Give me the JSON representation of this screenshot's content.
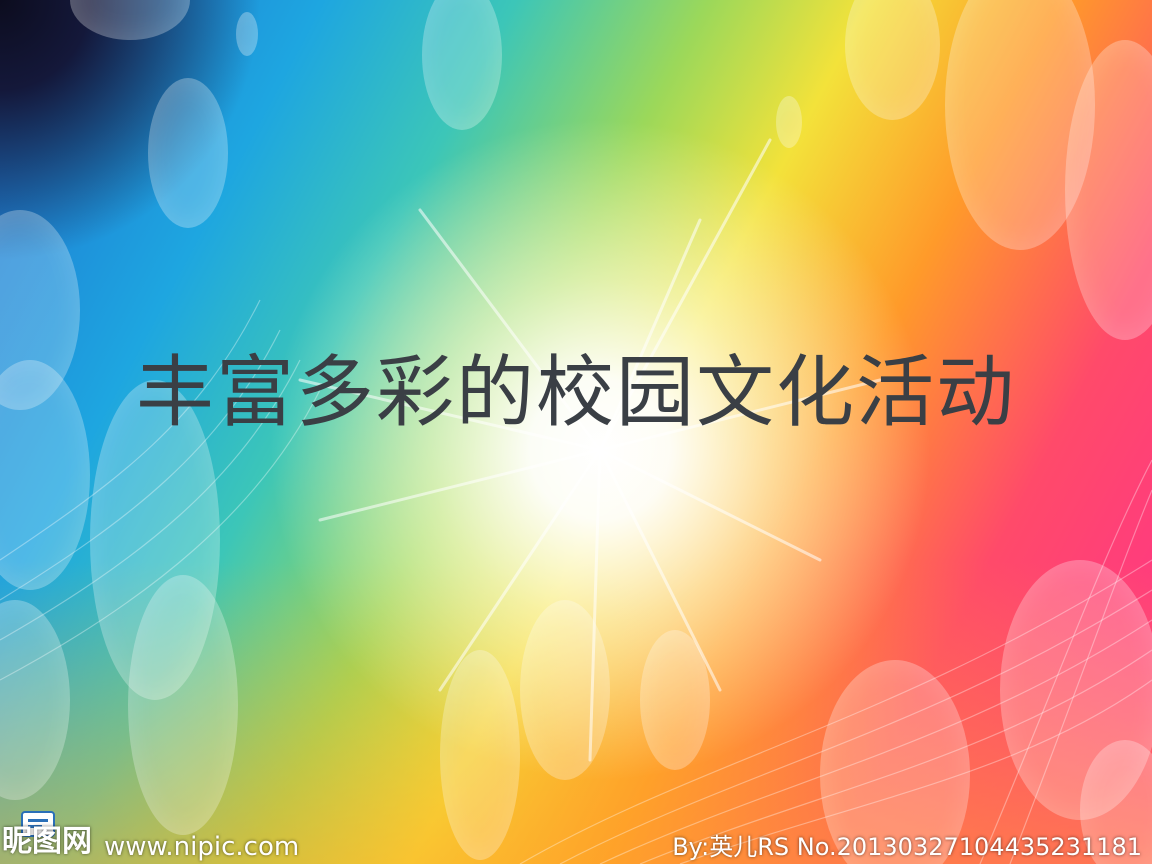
{
  "slide": {
    "title": "丰富多彩的校园文化活动"
  },
  "watermark": {
    "logo_text": "昵图网",
    "url": "www.nipic.com",
    "credit": "By:英儿RS  No.20130327104435231181"
  },
  "colors": {
    "title": "#3a3f45",
    "watermark_text": "#ffffff"
  }
}
